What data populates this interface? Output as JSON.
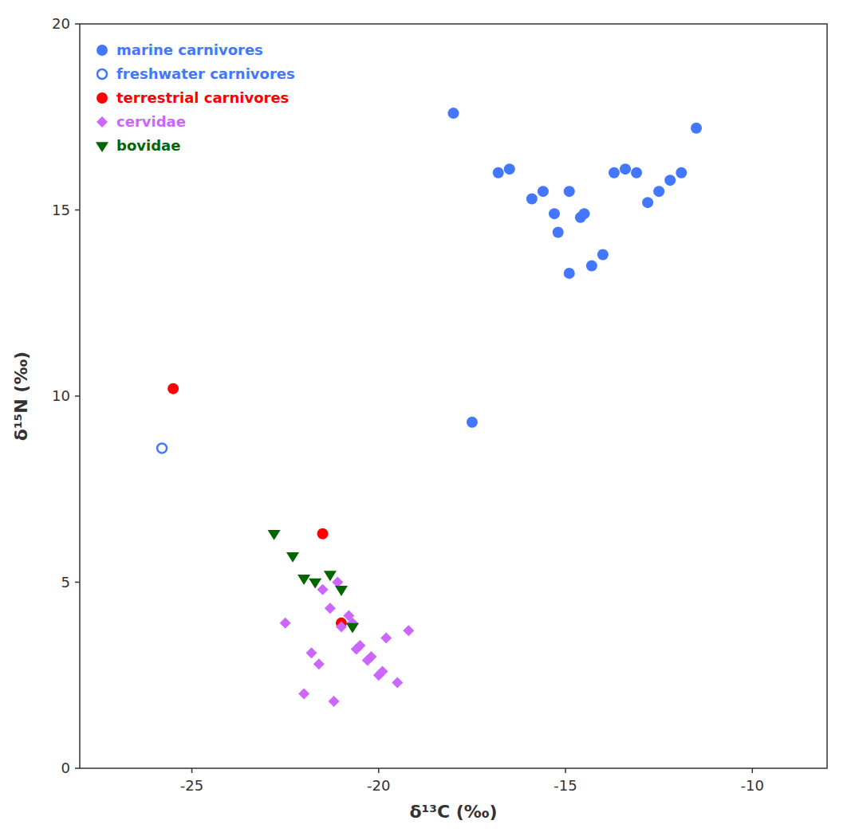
{
  "chart_data": {
    "type": "scatter",
    "x_label": "δ¹³C (‰)",
    "y_label": "δ¹⁵N (‰)",
    "xlim": [
      -28,
      -8
    ],
    "ylim": [
      0,
      20
    ],
    "xticks": [
      -25,
      -20,
      -15,
      -10
    ],
    "yticks": [
      0,
      5,
      10,
      15,
      20
    ],
    "grid": false,
    "legend": "upper left",
    "series": [
      {
        "name": "marine carnivores",
        "color": "#4477ff",
        "marker": "circle",
        "x": [
          -17.5,
          -11.5,
          -15.2,
          -14.9,
          -14.6,
          -14.3,
          -14.0,
          -13.7,
          -13.4,
          -13.1,
          -12.8,
          -12.5,
          -12.2,
          -11.9,
          -16.8,
          -16.5,
          -15.9,
          -15.6,
          -15.3,
          -14.9,
          -14.5,
          -18.0
        ],
        "values": [
          9.3,
          17.2,
          14.4,
          13.3,
          14.8,
          13.5,
          13.8,
          16.0,
          16.1,
          16.0,
          15.2,
          15.5,
          15.8,
          16.0,
          16.0,
          16.1,
          15.3,
          15.5,
          14.9,
          15.5,
          14.9,
          17.6
        ]
      },
      {
        "name": "freshwater carnivores",
        "color": "#4477ff",
        "marker": "open-circle",
        "x": [
          -25.8
        ],
        "values": [
          8.6
        ]
      },
      {
        "name": "terrestrial carnivores",
        "color": "#ff0000",
        "marker": "circle",
        "x": [
          -25.5,
          -21.5,
          -21.0
        ],
        "values": [
          10.2,
          6.3,
          3.9
        ]
      },
      {
        "name": "cervidae",
        "color": "#cc66ff",
        "marker": "diamond",
        "x": [
          -22.5,
          -21.8,
          -21.5,
          -21.0,
          -20.8,
          -20.5,
          -20.2,
          -20.0,
          -19.8,
          -19.5,
          -19.2,
          -22.0,
          -21.3,
          -20.7,
          -20.3,
          -19.9,
          -21.2,
          -20.6,
          -21.6,
          -21.1
        ],
        "values": [
          3.9,
          3.1,
          4.8,
          3.8,
          4.1,
          3.3,
          3.0,
          2.5,
          3.5,
          2.3,
          3.7,
          2.0,
          4.3,
          3.9,
          2.9,
          2.6,
          1.8,
          3.2,
          2.8,
          5.0
        ]
      },
      {
        "name": "bovidae",
        "color": "#006600",
        "marker": "triangle-down",
        "x": [
          -22.8,
          -22.3,
          -22.0,
          -21.7,
          -21.3,
          -21.0,
          -20.7
        ],
        "values": [
          6.3,
          5.7,
          5.1,
          5.0,
          5.2,
          4.8,
          3.8
        ]
      }
    ]
  }
}
